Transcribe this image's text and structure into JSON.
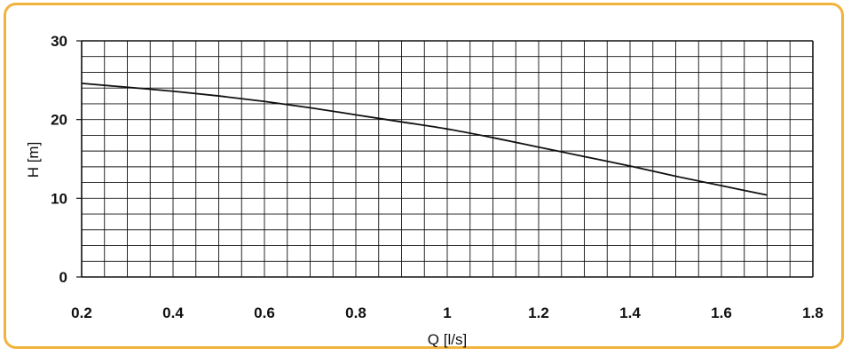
{
  "chart_data": {
    "type": "line",
    "xlabel": "Q [l/s]",
    "ylabel": "H [m]",
    "xlim": [
      0.2,
      1.8
    ],
    "ylim": [
      0,
      30
    ],
    "x_ticks": [
      {
        "value": 0.2,
        "label": "0.2"
      },
      {
        "value": 0.4,
        "label": "0.4"
      },
      {
        "value": 0.6,
        "label": "0.6"
      },
      {
        "value": 0.8,
        "label": "0.8"
      },
      {
        "value": 1.0,
        "label": "1"
      },
      {
        "value": 1.2,
        "label": "1.2"
      },
      {
        "value": 1.4,
        "label": "1.4"
      },
      {
        "value": 1.6,
        "label": "1.6"
      },
      {
        "value": 1.8,
        "label": "1.8"
      }
    ],
    "y_ticks": [
      {
        "value": 0,
        "label": "0"
      },
      {
        "value": 10,
        "label": "10"
      },
      {
        "value": 20,
        "label": "20"
      },
      {
        "value": 30,
        "label": "30"
      }
    ],
    "x_grid_step": 0.05,
    "y_grid_step": 2,
    "grid": true,
    "series": [
      {
        "x": [
          0.2,
          0.3,
          0.4,
          0.5,
          0.6,
          0.7,
          0.8,
          0.9,
          1.0,
          1.1,
          1.2,
          1.3,
          1.4,
          1.5,
          1.6,
          1.7
        ],
        "values": [
          24.6,
          24.1,
          23.6,
          23.0,
          22.3,
          21.5,
          20.6,
          19.7,
          18.8,
          17.7,
          16.5,
          15.3,
          14.1,
          12.8,
          11.6,
          10.4
        ]
      }
    ],
    "colors": {
      "frame": "#f1b33c",
      "grid": "#111111",
      "line": "#111111"
    }
  }
}
